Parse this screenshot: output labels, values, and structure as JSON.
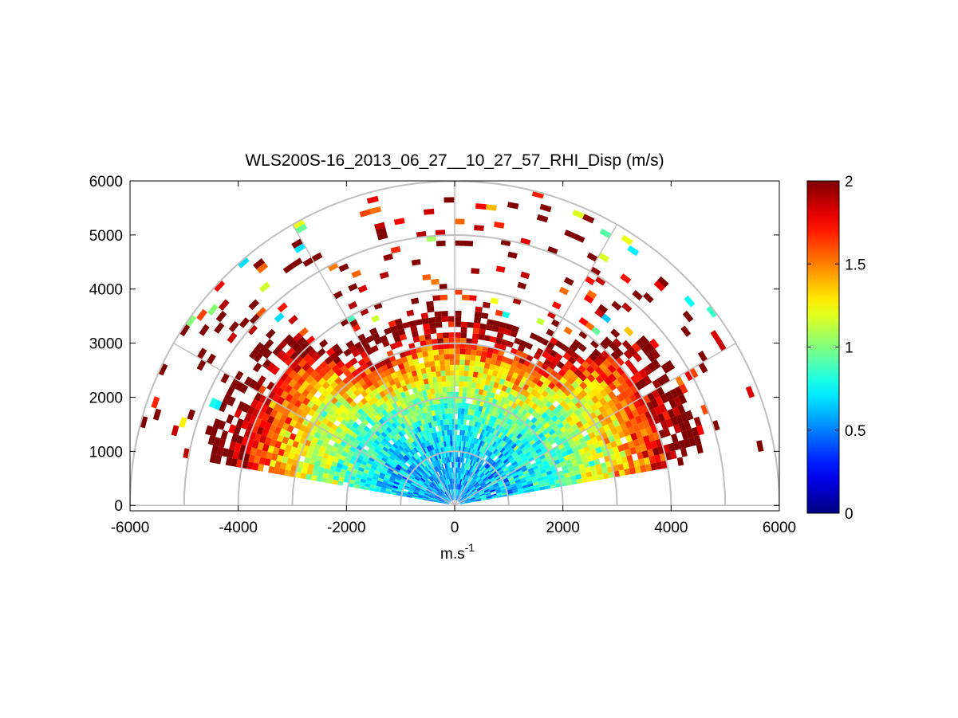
{
  "chart_data": {
    "type": "heatmap",
    "subtype": "polar-rhi-scan",
    "title": "WLS200S-16_2013_06_27__10_27_57_RHI_Disp (m/s)",
    "xlabel_base": "m.s",
    "xlabel_sup": "-1",
    "ylabel": "",
    "xlim": [
      -6000,
      6000
    ],
    "ylim": [
      -100,
      6000
    ],
    "xticks": [
      -6000,
      -4000,
      -2000,
      0,
      2000,
      4000,
      6000
    ],
    "xtick_labels": [
      "-6000",
      "-4000",
      "-2000",
      "0",
      "2000",
      "4000",
      "6000"
    ],
    "yticks": [
      0,
      1000,
      2000,
      3000,
      4000,
      5000,
      6000
    ],
    "ytick_labels": [
      "0",
      "1000",
      "2000",
      "3000",
      "4000",
      "5000",
      "6000"
    ],
    "polar_rings": [
      1000,
      2000,
      3000,
      4000,
      5000,
      6000
    ],
    "polar_spokes_deg": [
      0,
      30,
      60,
      90,
      120,
      150,
      180
    ],
    "colorbar": {
      "min": 0,
      "max": 2,
      "ticks": [
        0,
        0.5,
        1,
        1.5,
        2
      ],
      "tick_labels": [
        "0",
        "0.5",
        "1",
        "1.5",
        "2"
      ],
      "colormap": "jet"
    },
    "scan": {
      "elevation_min_deg": 10,
      "elevation_max_deg": 170,
      "range_min": 100,
      "range_max": 6000,
      "range_gate": 100,
      "angle_step_deg": 2,
      "value_description": "dispersion in m/s; low values (~0.4-0.8) near the lidar, rising to saturated 2.0 beyond ~2500-3500 m range, sparse returns above ~4000 m"
    }
  }
}
